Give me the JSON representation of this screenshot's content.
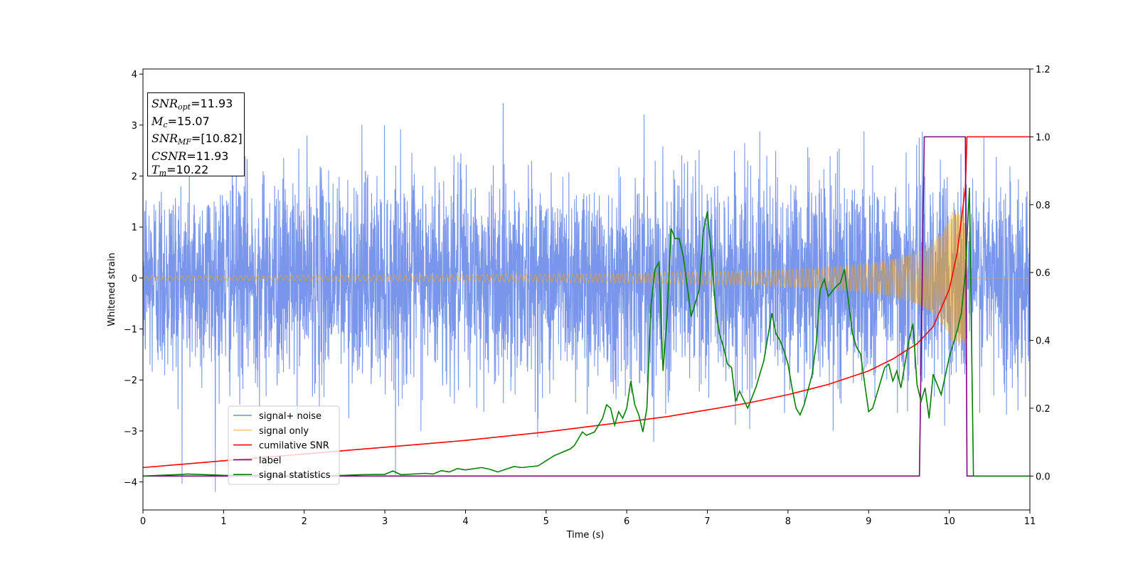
{
  "chart_data": {
    "type": "line",
    "xlabel": "Time (s)",
    "ylabel": "Whitened strain",
    "xlim": [
      0,
      11
    ],
    "ylim_left": [
      -4.55,
      4.1
    ],
    "ylim_right": [
      -0.1,
      1.2
    ],
    "x_ticks": [
      "0",
      "1",
      "2",
      "3",
      "4",
      "5",
      "6",
      "7",
      "8",
      "9",
      "10",
      "11"
    ],
    "y_ticks_left": [
      "−4",
      "−3",
      "−2",
      "−1",
      "0",
      "1",
      "2",
      "3",
      "4"
    ],
    "y_ticks_right": [
      "0.0",
      "0.2",
      "0.4",
      "0.6",
      "0.8",
      "1.0",
      "1.2"
    ],
    "legend_position": "lower-left",
    "legend": [
      {
        "label": "signal+ noise",
        "color": "#4169e1"
      },
      {
        "label": "signal only",
        "color": "#ffa500"
      },
      {
        "label": "cumilative SNR",
        "color": "#ff0000"
      },
      {
        "label": "label",
        "color": "#800080"
      },
      {
        "label": "signal statistics",
        "color": "#008000"
      }
    ],
    "annotation": {
      "snr_opt": "11.93",
      "mc": "15.07",
      "snr_mf": "[10.82]",
      "csnr": "11.93",
      "tm": "10.22"
    },
    "series": [
      {
        "name": "signal+ noise",
        "axis": "left",
        "description_type": "noise",
        "noise_std": 1.0,
        "approx_range": [
          -4.2,
          3.7
        ]
      },
      {
        "name": "signal only",
        "axis": "left",
        "description_type": "chirp",
        "merger_time": 10.22,
        "peak_amplitude": 1.3
      },
      {
        "name": "cumilative SNR",
        "axis": "right",
        "x": [
          0,
          1,
          2,
          3,
          4,
          5,
          5.5,
          6,
          6.5,
          7,
          7.5,
          8,
          8.5,
          9,
          9.3,
          9.6,
          9.8,
          10.0,
          10.1,
          10.2,
          10.22,
          11
        ],
        "y": [
          0.025,
          0.045,
          0.065,
          0.085,
          0.105,
          0.13,
          0.145,
          0.16,
          0.175,
          0.195,
          0.215,
          0.24,
          0.27,
          0.31,
          0.345,
          0.39,
          0.44,
          0.55,
          0.66,
          0.85,
          1.0,
          1.0
        ]
      },
      {
        "name": "label",
        "axis": "right",
        "x": [
          0,
          9.63,
          9.69,
          10.2,
          10.22,
          11
        ],
        "y": [
          0.0,
          0.0,
          1.0,
          1.0,
          0.0,
          0.0
        ]
      },
      {
        "name": "signal statistics",
        "axis": "right",
        "x": [
          0,
          0.5,
          0.55,
          1,
          1.5,
          2,
          2.5,
          2.7,
          3.0,
          3.1,
          3.2,
          3.5,
          3.6,
          3.7,
          3.8,
          3.9,
          4.0,
          4.2,
          4.3,
          4.4,
          4.6,
          4.7,
          4.9,
          5.0,
          5.1,
          5.2,
          5.3,
          5.35,
          5.4,
          5.45,
          5.5,
          5.6,
          5.7,
          5.75,
          5.8,
          5.85,
          5.9,
          5.95,
          6.0,
          6.05,
          6.1,
          6.15,
          6.2,
          6.25,
          6.3,
          6.35,
          6.4,
          6.45,
          6.5,
          6.55,
          6.6,
          6.65,
          6.7,
          6.8,
          6.9,
          6.95,
          7.0,
          7.05,
          7.1,
          7.15,
          7.2,
          7.25,
          7.3,
          7.35,
          7.4,
          7.5,
          7.6,
          7.7,
          7.8,
          7.85,
          7.9,
          7.95,
          8.0,
          8.05,
          8.1,
          8.15,
          8.2,
          8.3,
          8.35,
          8.4,
          8.45,
          8.5,
          8.6,
          8.65,
          8.7,
          8.8,
          8.85,
          8.9,
          9.0,
          9.05,
          9.1,
          9.2,
          9.25,
          9.3,
          9.35,
          9.4,
          9.5,
          9.55,
          9.6,
          9.65,
          9.7,
          9.75,
          9.8,
          9.9,
          10.0,
          10.05,
          10.1,
          10.15,
          10.2,
          10.25,
          10.3,
          10.4,
          11
        ],
        "y": [
          0.0,
          0.005,
          0.006,
          0.002,
          0.001,
          0.001,
          0.002,
          0.004,
          0.005,
          0.015,
          0.004,
          0.008,
          0.006,
          0.016,
          0.012,
          0.022,
          0.018,
          0.025,
          0.02,
          0.012,
          0.028,
          0.025,
          0.03,
          0.045,
          0.06,
          0.07,
          0.08,
          0.09,
          0.11,
          0.13,
          0.12,
          0.13,
          0.17,
          0.21,
          0.2,
          0.15,
          0.19,
          0.17,
          0.2,
          0.28,
          0.21,
          0.18,
          0.13,
          0.2,
          0.5,
          0.61,
          0.63,
          0.31,
          0.47,
          0.73,
          0.7,
          0.7,
          0.65,
          0.47,
          0.55,
          0.72,
          0.78,
          0.65,
          0.5,
          0.42,
          0.38,
          0.33,
          0.32,
          0.22,
          0.25,
          0.2,
          0.26,
          0.34,
          0.48,
          0.42,
          0.4,
          0.37,
          0.33,
          0.26,
          0.2,
          0.18,
          0.21,
          0.3,
          0.39,
          0.55,
          0.58,
          0.53,
          0.56,
          0.57,
          0.61,
          0.42,
          0.38,
          0.36,
          0.19,
          0.2,
          0.24,
          0.32,
          0.33,
          0.28,
          0.31,
          0.26,
          0.4,
          0.45,
          0.27,
          0.22,
          0.26,
          0.17,
          0.3,
          0.24,
          0.35,
          0.39,
          0.43,
          0.48,
          0.6,
          0.85,
          0.0,
          0.0,
          0.0
        ]
      }
    ]
  }
}
